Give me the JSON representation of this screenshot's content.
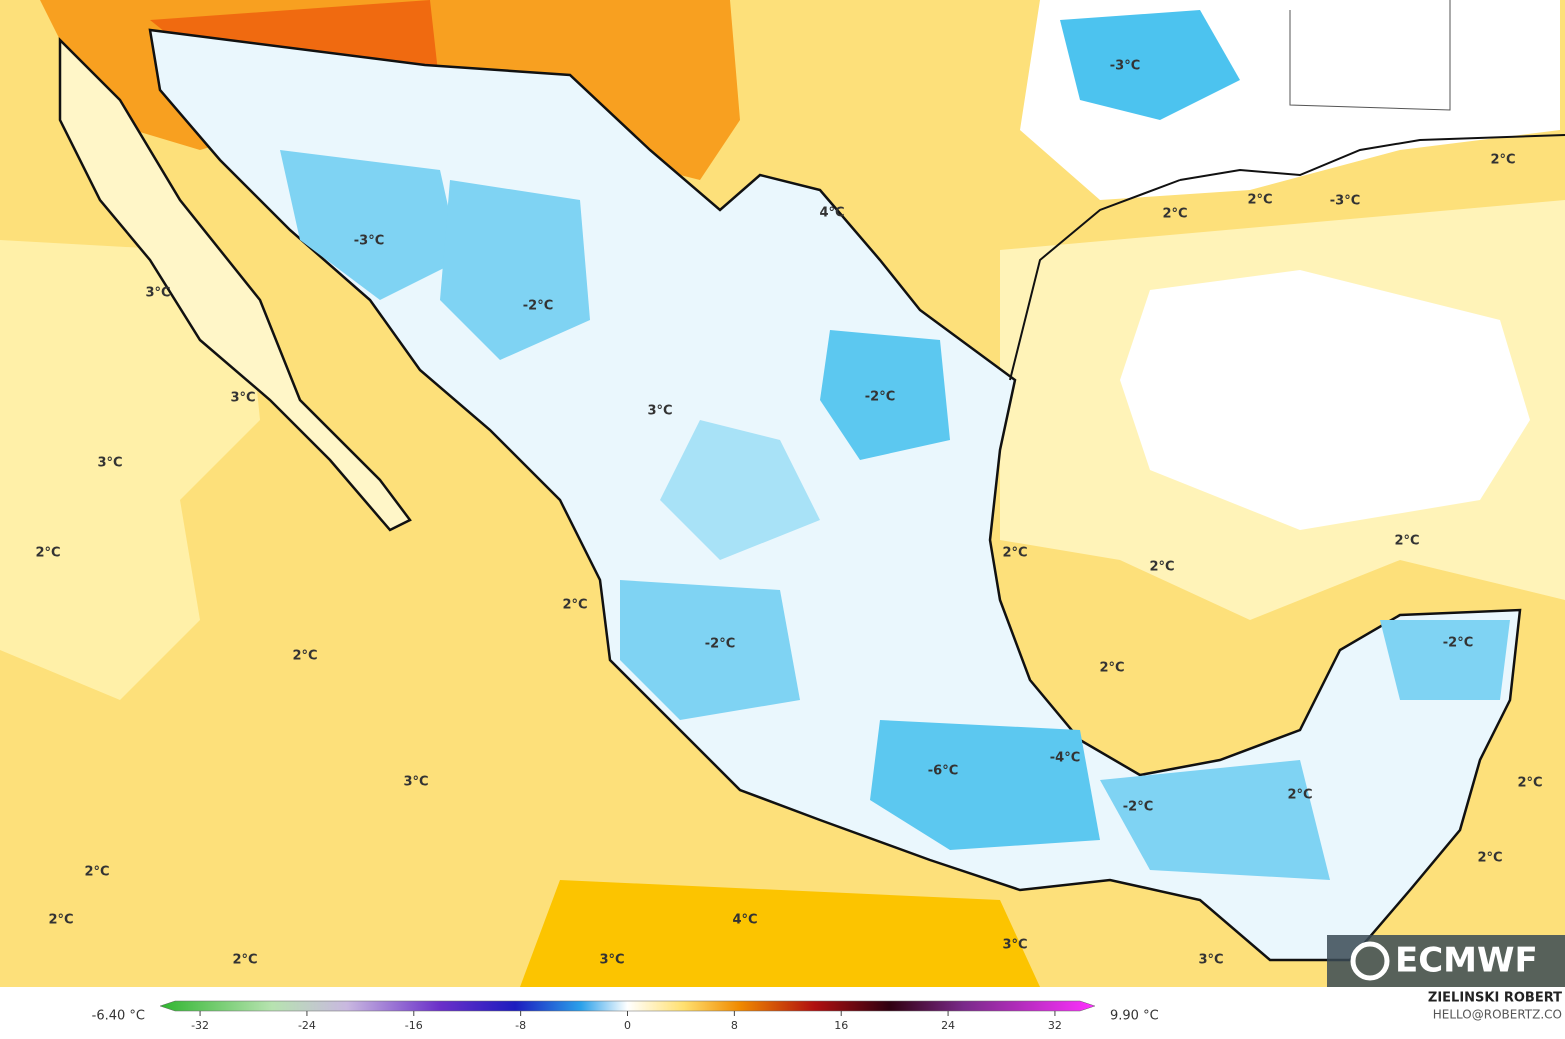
{
  "map": {
    "labels": [
      "-3°C",
      "2°C",
      "4°C",
      "2°C",
      "2°C",
      "-3°C",
      "-3°C",
      "3°C",
      "-2°C",
      "-2°C",
      "3°C",
      "3°C",
      "3°C",
      "2°C",
      "2°C",
      "2°C",
      "2°C",
      "2°C",
      "2°C",
      "-2°C",
      "-2°C",
      "2°C",
      "-4°C",
      "-6°C",
      "3°C",
      "2°C",
      "-2°C",
      "2°C",
      "2°C",
      "2°C",
      "2°C",
      "4°C",
      "2°C",
      "3°C",
      "3°C",
      "3°C"
    ]
  },
  "colorbar": {
    "min_label": "-6.40 °C",
    "max_label": "9.90 °C",
    "range": [
      -35,
      35
    ],
    "ticks": [
      -32,
      -24,
      -16,
      -8,
      0,
      8,
      16,
      24,
      32
    ]
  },
  "credits": {
    "name": "ZIELINSKI ROBERT",
    "contact": "HELLO@ROBERTZ.CO"
  },
  "logo": "ECMWF"
}
